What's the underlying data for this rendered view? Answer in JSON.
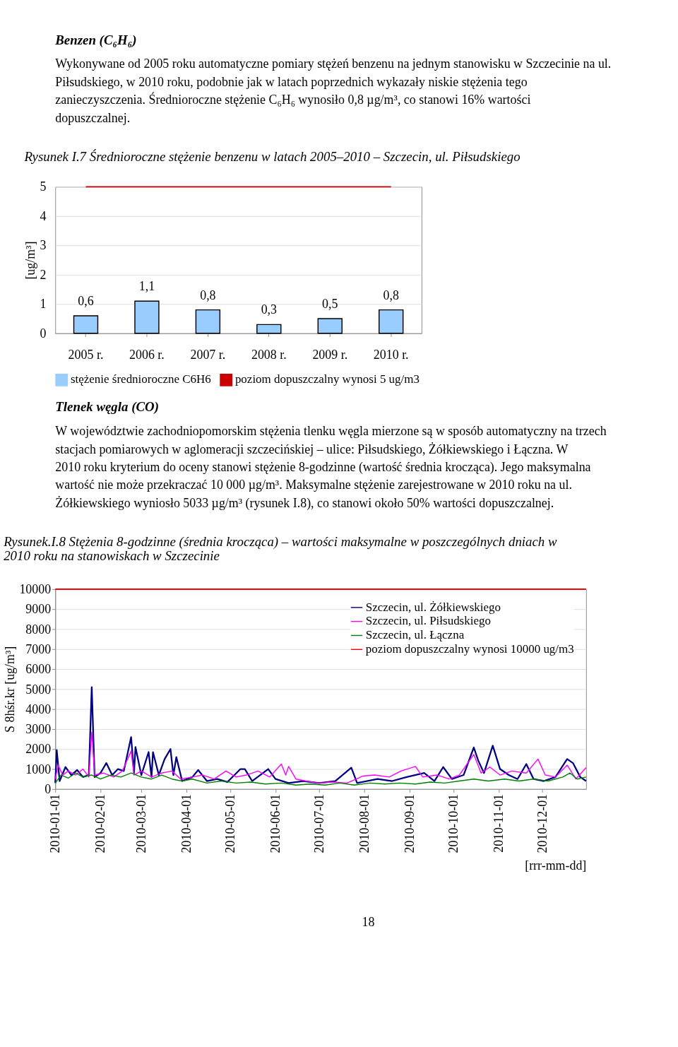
{
  "chart_data": [
    {
      "type": "bar",
      "title": "Rysunek I.7 Średnioroczne stężenie benzenu w latach 2005–2010 – Szczecin, ul. Piłsudskiego",
      "annotations": [
        "Benzen (C₆H₆)",
        "Wykonywane od 2005 roku automatyczne pomiary stężeń benzenu na jednym stanowisku w Szczecinie na ul. Piłsudskiego, w 2010 roku, podobnie jak w latach poprzednich wykazały niskie stężenia tego zanieczyszczenia. Średnioroczne stężenie C₆H₆ wynosiło 0,8 µg/m³, co stanowi 16% wartości dopuszczalnej."
      ],
      "ylabel": "[ug/m³]",
      "categories": [
        "2005 r.",
        "2006 r.",
        "2007 r.",
        "2008 r.",
        "2009 r.",
        "2010 r."
      ],
      "series": [
        {
          "name": "stężenie średnioroczne C6H6",
          "type": "bar",
          "color": "#99ccff",
          "values": [
            0.6,
            1.1,
            0.8,
            0.3,
            0.5,
            0.8
          ],
          "value_labels": [
            "0,6",
            "1,1",
            "0,8",
            "0,3",
            "0,5",
            "0,8"
          ]
        },
        {
          "name": "poziom dopuszczalny wynosi 5 ug/m3",
          "type": "line",
          "color": "#cc0000",
          "values": [
            5,
            5,
            5,
            5,
            5,
            5
          ]
        }
      ],
      "ylim": [
        0,
        5
      ],
      "yticks": [
        0,
        1,
        2,
        3,
        4,
        5
      ],
      "grid": "y",
      "legend": "bottom"
    },
    {
      "type": "line",
      "title": "Rysunek.I.8 Stężenia 8-godzinne (średnia krocząca) – wartości maksymalne w poszczególnych dniach w 2010 roku na stanowiskach w Szczecinie",
      "annotations": [
        "Tlenek węgla (CO)",
        "W województwie zachodniopomorskim stężenia tlenku węgla mierzone są w sposób automatyczny na trzech stacjach pomiarowych w aglomeracji szczecińskiej – ulice: Piłsudskiego, Żółkiewskiego i Łączna. W 2010 roku kryterium do oceny stanowi stężenie 8-godzinne (wartość średnia krocząca). Jego maksymalna wartość nie może przekraczać 10 000 µg/m³. Maksymalne stężenie zarejestrowane w 2010 roku na ul. Żółkiewskiego wyniosło 5033 µg/m³ (rysunek I.8), co stanowi około 50% wartości dopuszczalnej.",
        "18"
      ],
      "ylabel": "S 8hśr.kr [ug/m³]",
      "xlabel": "[rrr-mm-dd]",
      "series": [
        {
          "name": "Szczecin, ul. Żółkiewskiego",
          "color": "#000080",
          "x": [
            "2010-01-01",
            "2010-01-02",
            "2010-01-04",
            "2010-01-08",
            "2010-01-12",
            "2010-01-16",
            "2010-01-20",
            "2010-01-24",
            "2010-01-26",
            "2010-01-28",
            "2010-02-01",
            "2010-02-05",
            "2010-02-09",
            "2010-02-13",
            "2010-02-17",
            "2010-02-22",
            "2010-02-24",
            "2010-02-25",
            "2010-03-01",
            "2010-03-06",
            "2010-03-08",
            "2010-03-09",
            "2010-03-13",
            "2010-03-17",
            "2010-03-21",
            "2010-03-23",
            "2010-03-25",
            "2010-03-29",
            "2010-04-05",
            "2010-04-09",
            "2010-04-15",
            "2010-04-22",
            "2010-04-29",
            "2010-05-08",
            "2010-05-11",
            "2010-05-16",
            "2010-05-27",
            "2010-06-01",
            "2010-06-10",
            "2010-06-20",
            "2010-07-01",
            "2010-07-12",
            "2010-07-23",
            "2010-07-27",
            "2010-08-10",
            "2010-08-20",
            "2010-08-30",
            "2010-09-11",
            "2010-09-18",
            "2010-09-24",
            "2010-09-30",
            "2010-10-08",
            "2010-10-15",
            "2010-10-18",
            "2010-10-22",
            "2010-10-28",
            "2010-11-02",
            "2010-11-08",
            "2010-11-14",
            "2010-11-20",
            "2010-11-25",
            "2010-12-02",
            "2010-12-10",
            "2010-12-18",
            "2010-12-22",
            "2010-12-27",
            "2010-12-31"
          ],
          "values": [
            300,
            1950,
            400,
            1100,
            700,
            950,
            600,
            700,
            5100,
            600,
            800,
            1300,
            700,
            1000,
            900,
            2600,
            800,
            2100,
            700,
            1850,
            600,
            1850,
            700,
            1500,
            2000,
            700,
            1600,
            400,
            600,
            950,
            400,
            500,
            350,
            1000,
            1000,
            400,
            1000,
            500,
            300,
            400,
            300,
            400,
            1070,
            300,
            500,
            400,
            600,
            800,
            400,
            1100,
            500,
            700,
            2080,
            1430,
            800,
            2170,
            1000,
            700,
            500,
            1250,
            500,
            400,
            600,
            1500,
            1300,
            600,
            400
          ]
        },
        {
          "name": "Szczecin, ul. Piłsudskiego",
          "color": "#ff00ff",
          "x": [
            "2010-01-01",
            "2010-01-03",
            "2010-01-06",
            "2010-01-10",
            "2010-01-15",
            "2010-01-20",
            "2010-01-24",
            "2010-01-26",
            "2010-01-28",
            "2010-02-03",
            "2010-02-10",
            "2010-02-16",
            "2010-02-22",
            "2010-02-24",
            "2010-03-01",
            "2010-03-08",
            "2010-03-15",
            "2010-03-22",
            "2010-03-28",
            "2010-04-05",
            "2010-04-12",
            "2010-04-20",
            "2010-04-28",
            "2010-05-05",
            "2010-05-12",
            "2010-05-20",
            "2010-05-28",
            "2010-06-05",
            "2010-06-08",
            "2010-06-10",
            "2010-06-15",
            "2010-06-22",
            "2010-07-01",
            "2010-07-10",
            "2010-07-20",
            "2010-07-31",
            "2010-08-08",
            "2010-08-18",
            "2010-08-26",
            "2010-09-05",
            "2010-09-10",
            "2010-09-20",
            "2010-09-28",
            "2010-10-05",
            "2010-10-15",
            "2010-10-20",
            "2010-10-26",
            "2010-11-02",
            "2010-11-10",
            "2010-11-20",
            "2010-11-28",
            "2010-12-03",
            "2010-12-10",
            "2010-12-18",
            "2010-12-24",
            "2010-12-31"
          ],
          "values": [
            500,
            1200,
            700,
            900,
            700,
            1000,
            600,
            2850,
            700,
            800,
            600,
            900,
            1900,
            700,
            900,
            600,
            800,
            900,
            500,
            600,
            700,
            500,
            900,
            600,
            700,
            900,
            600,
            1250,
            700,
            1130,
            500,
            400,
            300,
            350,
            300,
            650,
            700,
            600,
            900,
            1130,
            600,
            700,
            500,
            700,
            1730,
            800,
            1100,
            700,
            900,
            800,
            1500,
            700,
            600,
            1200,
            500,
            1070
          ]
        },
        {
          "name": "Szczecin, ul. Łączna",
          "color": "#008000",
          "x": [
            "2010-01-01",
            "2010-01-05",
            "2010-01-10",
            "2010-01-15",
            "2010-01-20",
            "2010-01-26",
            "2010-02-01",
            "2010-02-08",
            "2010-02-15",
            "2010-02-22",
            "2010-03-01",
            "2010-03-08",
            "2010-03-15",
            "2010-03-22",
            "2010-03-29",
            "2010-04-05",
            "2010-04-15",
            "2010-04-25",
            "2010-05-05",
            "2010-05-15",
            "2010-05-25",
            "2010-06-05",
            "2010-06-15",
            "2010-06-25",
            "2010-07-05",
            "2010-07-15",
            "2010-07-25",
            "2010-08-05",
            "2010-08-15",
            "2010-08-25",
            "2010-09-05",
            "2010-09-15",
            "2010-09-25",
            "2010-10-05",
            "2010-10-15",
            "2010-10-25",
            "2010-11-05",
            "2010-11-15",
            "2010-11-25",
            "2010-12-05",
            "2010-12-15",
            "2010-12-20",
            "2010-12-25",
            "2010-12-31"
          ],
          "values": [
            300,
            700,
            550,
            800,
            600,
            700,
            500,
            700,
            600,
            800,
            600,
            500,
            700,
            500,
            400,
            500,
            300,
            400,
            300,
            350,
            250,
            300,
            200,
            250,
            200,
            300,
            200,
            300,
            250,
            300,
            250,
            350,
            300,
            400,
            500,
            400,
            500,
            400,
            500,
            400,
            600,
            800,
            500,
            600
          ]
        }
      ],
      "ref_lines": [
        {
          "axis": "y",
          "value": 10000,
          "label": "poziom dopuszczalny wynosi 10000 ug/m3",
          "color": "#ff0000"
        }
      ],
      "xlim": [
        "2010-01-01",
        "2010-12-31"
      ],
      "xticks": [
        "2010-01-01",
        "2010-02-01",
        "2010-03-01",
        "2010-04-01",
        "2010-05-01",
        "2010-06-01",
        "2010-07-01",
        "2010-08-01",
        "2010-09-01",
        "2010-10-01",
        "2010-11-01",
        "2010-12-01"
      ],
      "ylim": [
        0,
        10000
      ],
      "yticks": [
        0,
        1000,
        2000,
        3000,
        4000,
        5000,
        6000,
        7000,
        8000,
        9000,
        10000
      ],
      "grid": "y",
      "legend": "top right"
    }
  ]
}
